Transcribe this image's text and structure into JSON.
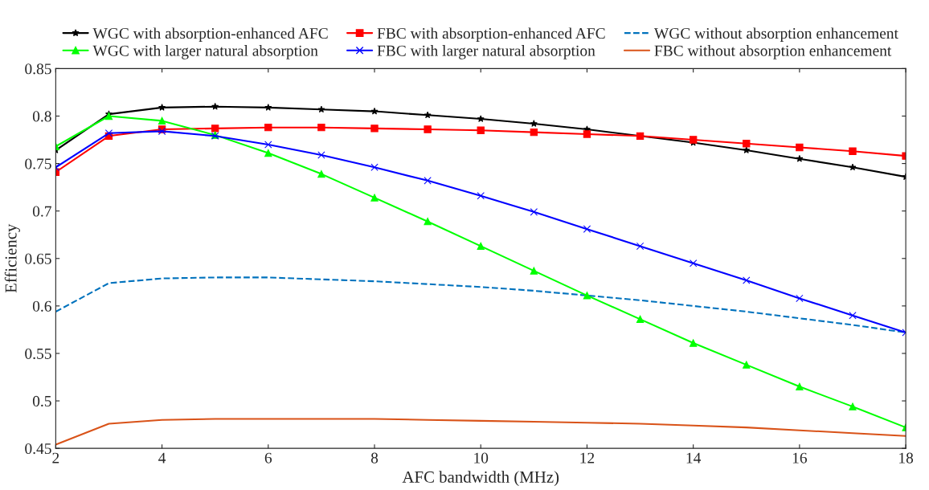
{
  "chart_data": {
    "type": "line",
    "xlabel": "AFC bandwidth (MHz)",
    "ylabel": "Efficiency",
    "x": [
      2,
      3,
      4,
      5,
      6,
      7,
      8,
      9,
      10,
      11,
      12,
      13,
      14,
      15,
      16,
      17,
      18
    ],
    "xlim": [
      2,
      18
    ],
    "xticks": [
      2,
      4,
      6,
      8,
      10,
      12,
      14,
      16,
      18
    ],
    "ylim": [
      0.45,
      0.85
    ],
    "yticks": [
      0.45,
      0.5,
      0.55,
      0.6,
      0.65,
      0.7,
      0.75,
      0.8,
      0.85
    ],
    "grid": false,
    "legend": "top",
    "series": [
      {
        "name": "WGC with absorption-enhanced AFC",
        "color": "#000000",
        "marker": "star",
        "line_style": "solid",
        "values": [
          0.764,
          0.802,
          0.809,
          0.81,
          0.809,
          0.807,
          0.805,
          0.801,
          0.797,
          0.792,
          0.786,
          0.779,
          0.772,
          0.764,
          0.755,
          0.746,
          0.736
        ]
      },
      {
        "name": "FBC with absorption-enhanced AFC",
        "color": "#ff0000",
        "marker": "square",
        "line_style": "solid",
        "values": [
          0.741,
          0.779,
          0.786,
          0.787,
          0.788,
          0.788,
          0.787,
          0.786,
          0.785,
          0.783,
          0.781,
          0.779,
          0.775,
          0.771,
          0.767,
          0.763,
          0.758
        ]
      },
      {
        "name": "WGC without absorption enhancement",
        "color": "#0072bd",
        "marker": "none",
        "line_style": "dashed",
        "values": [
          0.594,
          0.624,
          0.629,
          0.63,
          0.63,
          0.628,
          0.626,
          0.623,
          0.62,
          0.616,
          0.611,
          0.606,
          0.6,
          0.594,
          0.587,
          0.58,
          0.572
        ]
      },
      {
        "name": "WGC with larger natural absorption",
        "color": "#00ff00",
        "marker": "triangle",
        "line_style": "solid",
        "values": [
          0.768,
          0.8,
          0.795,
          0.78,
          0.761,
          0.739,
          0.714,
          0.689,
          0.663,
          0.637,
          0.611,
          0.586,
          0.561,
          0.538,
          0.515,
          0.494,
          0.472
        ]
      },
      {
        "name": "FBC with larger natural absorption",
        "color": "#0000ff",
        "marker": "cross",
        "line_style": "solid",
        "values": [
          0.746,
          0.782,
          0.784,
          0.779,
          0.77,
          0.759,
          0.746,
          0.732,
          0.716,
          0.699,
          0.681,
          0.663,
          0.645,
          0.627,
          0.608,
          0.59,
          0.572
        ]
      },
      {
        "name": "FBC without absorption enhancement",
        "color": "#d95319",
        "marker": "none",
        "line_style": "solid",
        "values": [
          0.454,
          0.476,
          0.48,
          0.481,
          0.481,
          0.481,
          0.481,
          0.48,
          0.479,
          0.478,
          0.477,
          0.476,
          0.474,
          0.472,
          0.469,
          0.466,
          0.463
        ]
      }
    ]
  }
}
